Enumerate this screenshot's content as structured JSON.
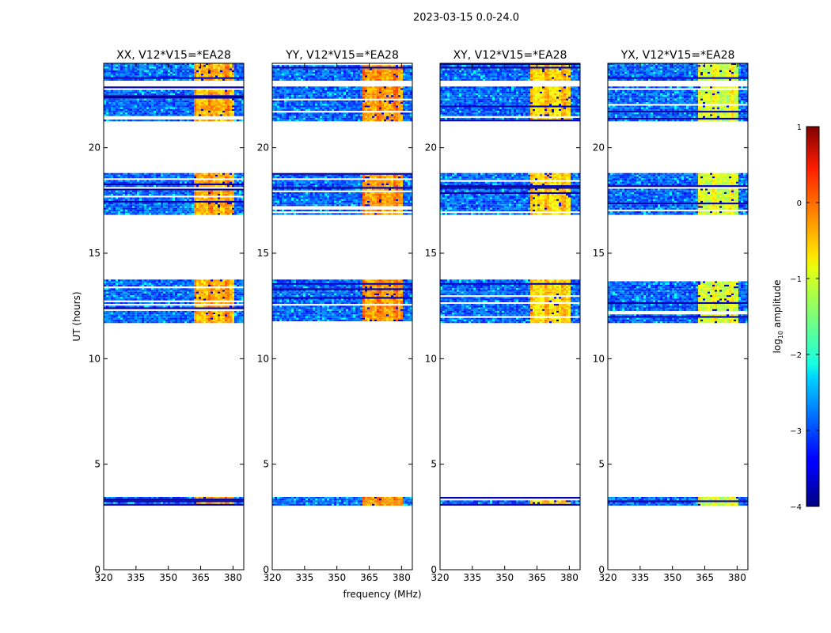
{
  "chart_data": {
    "type": "heatmap",
    "title": "2023-03-15 0.0-24.0",
    "xlabel": "frequency (MHz)",
    "ylabel": "UT (hours)",
    "xlim": [
      320,
      385
    ],
    "ylim": [
      0,
      24
    ],
    "xticks": [
      320,
      335,
      350,
      365,
      380
    ],
    "yticks": [
      0,
      5,
      10,
      15,
      20
    ],
    "band_rfi_start_mhz": 361,
    "panels": [
      {
        "title": "XX, V12*V15=*EA28",
        "rfi_intensity": 0.78
      },
      {
        "title": "YY, V12*V15=*EA28",
        "rfi_intensity": 0.8
      },
      {
        "title": "XY, V12*V15=*EA28",
        "rfi_intensity": 0.74
      },
      {
        "title": "YX, V12*V15=*EA28",
        "rfi_intensity": 0.66
      }
    ],
    "data_segments_ut_hours": [
      [
        3.1,
        3.45
      ],
      [
        11.75,
        13.75
      ],
      [
        16.9,
        18.8
      ],
      [
        21.3,
        22.9
      ],
      [
        23.2,
        24.0
      ]
    ],
    "colorbar": {
      "label": "log10 amplitude",
      "label_main": "log",
      "label_sub": "10",
      "label_rest": " amplitude",
      "min": -4,
      "max": 1,
      "ticks": [
        "1",
        "0",
        "−1",
        "−2",
        "−3",
        "−4"
      ],
      "tick_values": [
        1,
        0,
        -1,
        -2,
        -3,
        -4
      ],
      "colormap": "jet"
    }
  }
}
